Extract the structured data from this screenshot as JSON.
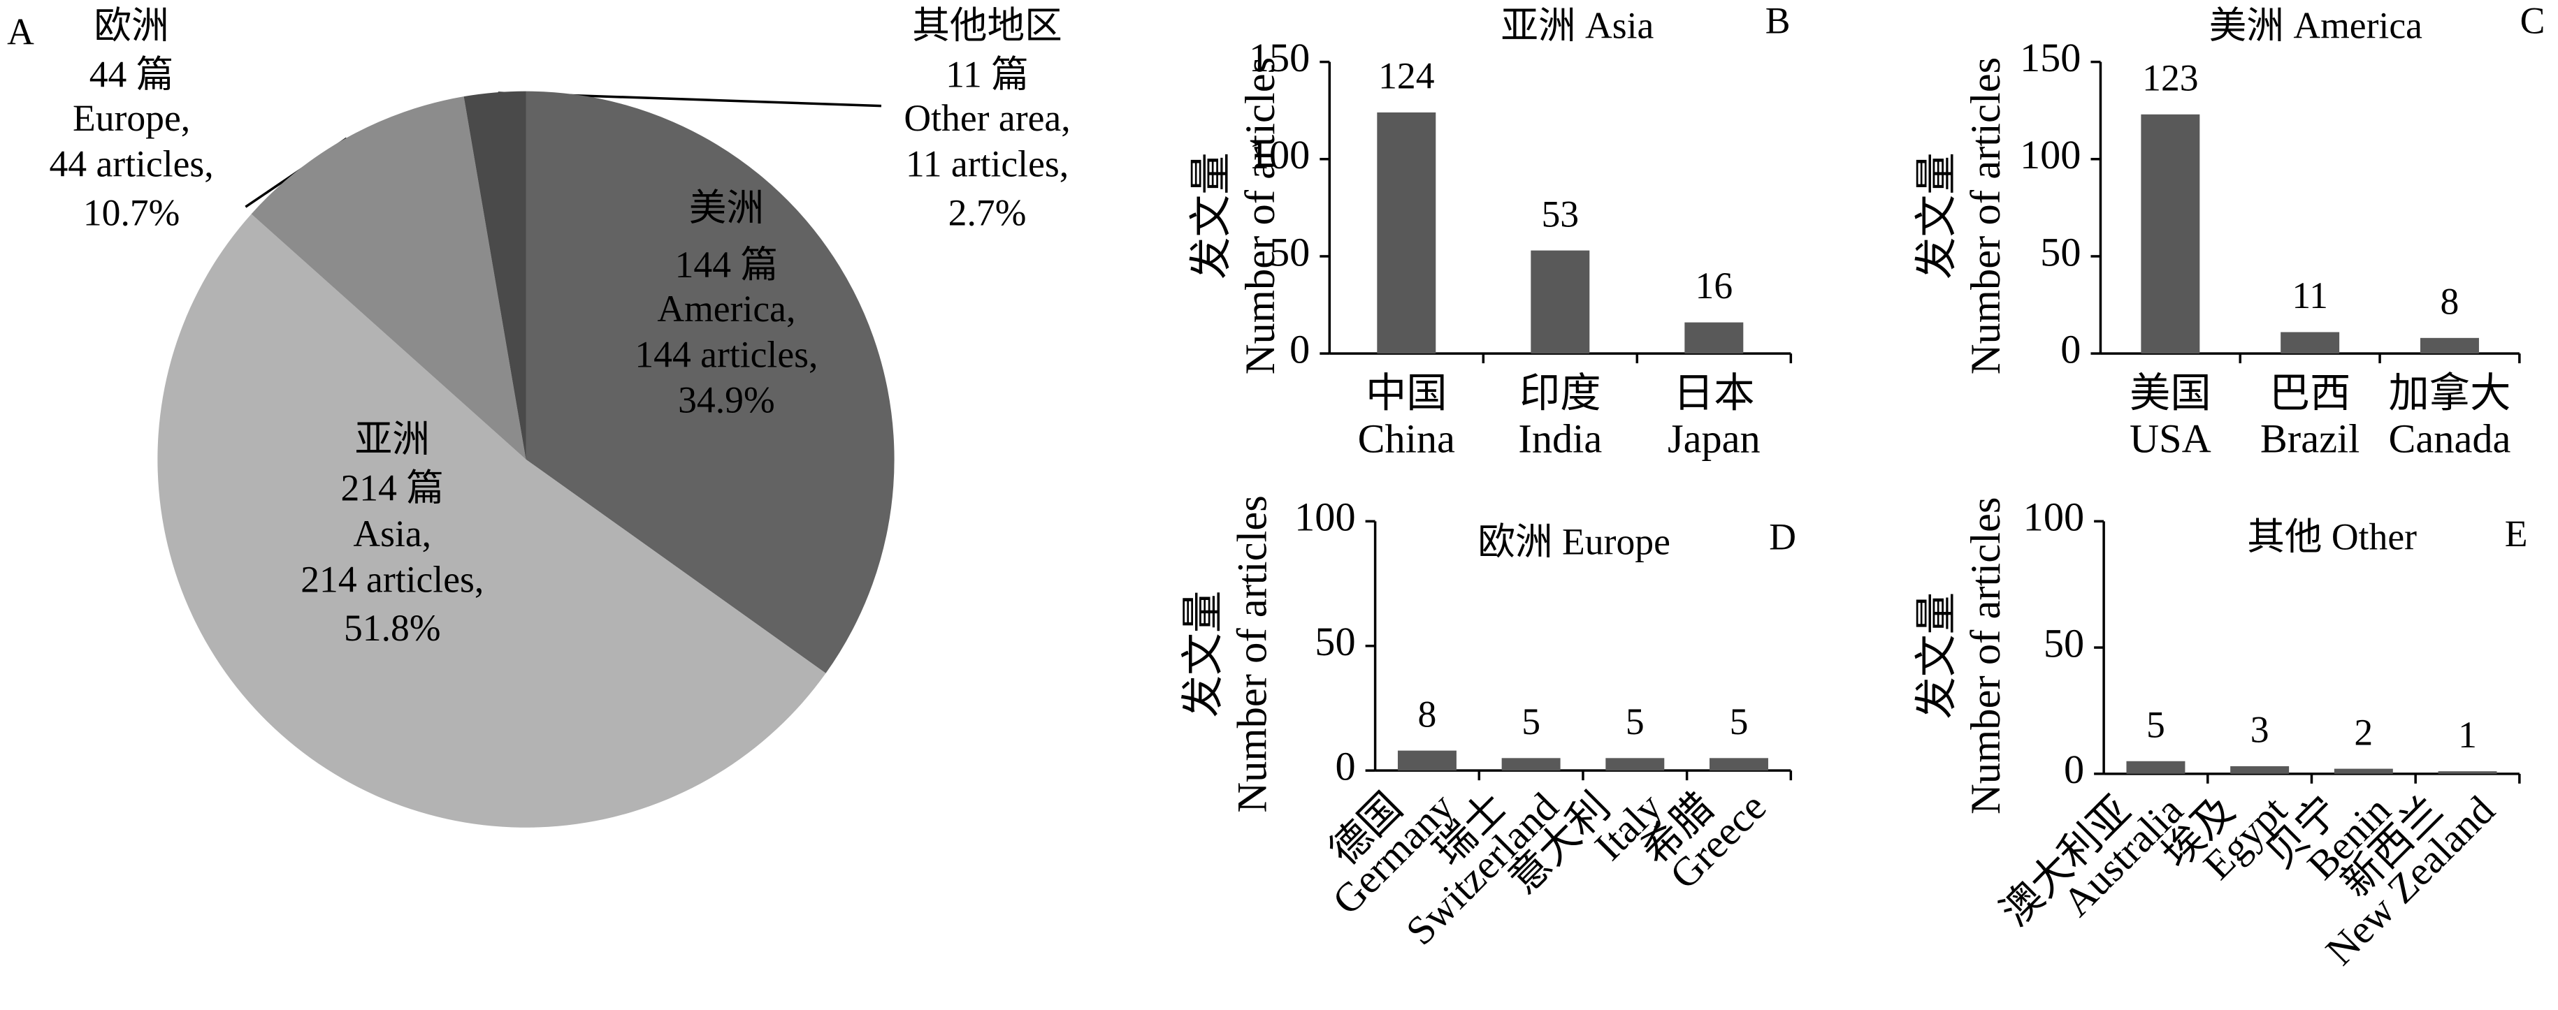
{
  "chart_data": [
    {
      "type": "pie",
      "panel": "A",
      "categories": [
        "美洲",
        "亚洲",
        "欧洲",
        "其他地区"
      ],
      "count_labels": [
        "144 篇",
        "214 篇",
        "44 篇",
        "11 篇"
      ],
      "categories_en": [
        "America,",
        "Asia,",
        "Europe,",
        "Other area,"
      ],
      "count_labels_en": [
        "144 articles,",
        "214 articles,",
        "44 articles,",
        "11 articles,"
      ],
      "values": [
        34.9,
        51.8,
        10.7,
        2.7
      ],
      "value_labels": [
        "34.9%",
        "51.8%",
        "10.7%",
        "2.7%"
      ],
      "colors": [
        "#636363",
        "#b3b3b3",
        "#8c8c8c",
        "#4a4a4a"
      ]
    },
    {
      "type": "bar",
      "panel": "B",
      "title": "亚洲 Asia",
      "ylabel": "发文量",
      "ylabel_en": "Number of articles",
      "categories_zh": [
        "中国",
        "印度",
        "日本"
      ],
      "categories": [
        "China",
        "India",
        "Japan"
      ],
      "values": [
        124,
        53,
        16
      ],
      "color": "#595959",
      "ylim": [
        0,
        150
      ],
      "yticks": [
        0,
        50,
        100,
        150
      ]
    },
    {
      "type": "bar",
      "panel": "C",
      "title": "美洲 America",
      "ylabel": "发文量",
      "ylabel_en": "Number of articles",
      "categories_zh": [
        "美国",
        "巴西",
        "加拿大"
      ],
      "categories": [
        "USA",
        "Brazil",
        "Canada"
      ],
      "values": [
        123,
        11,
        8
      ],
      "color": "#595959",
      "ylim": [
        0,
        150
      ],
      "yticks": [
        0,
        50,
        100,
        150
      ]
    },
    {
      "type": "bar",
      "panel": "D",
      "title": "欧洲 Europe",
      "ylabel": "发文量",
      "ylabel_en": "Number of articles",
      "categories_zh": [
        "德国",
        "瑞士",
        "意大利",
        "希腊"
      ],
      "categories": [
        "Germany",
        "Switzerland",
        "Italy",
        "Greece"
      ],
      "values": [
        8,
        5,
        5,
        5
      ],
      "color": "#595959",
      "ylim": [
        0,
        100
      ],
      "yticks": [
        0,
        50,
        100
      ]
    },
    {
      "type": "bar",
      "panel": "E",
      "title": "其他 Other",
      "ylabel": "发文量",
      "ylabel_en": "Number of articles",
      "categories_zh": [
        "澳大利亚",
        "埃及",
        "贝宁",
        "新西兰"
      ],
      "categories": [
        "Australia",
        "Egypt",
        "Benin",
        "New Zealand"
      ],
      "values": [
        5,
        3,
        2,
        1
      ],
      "color": "#595959",
      "ylim": [
        0,
        100
      ],
      "yticks": [
        0,
        50,
        100
      ]
    }
  ]
}
